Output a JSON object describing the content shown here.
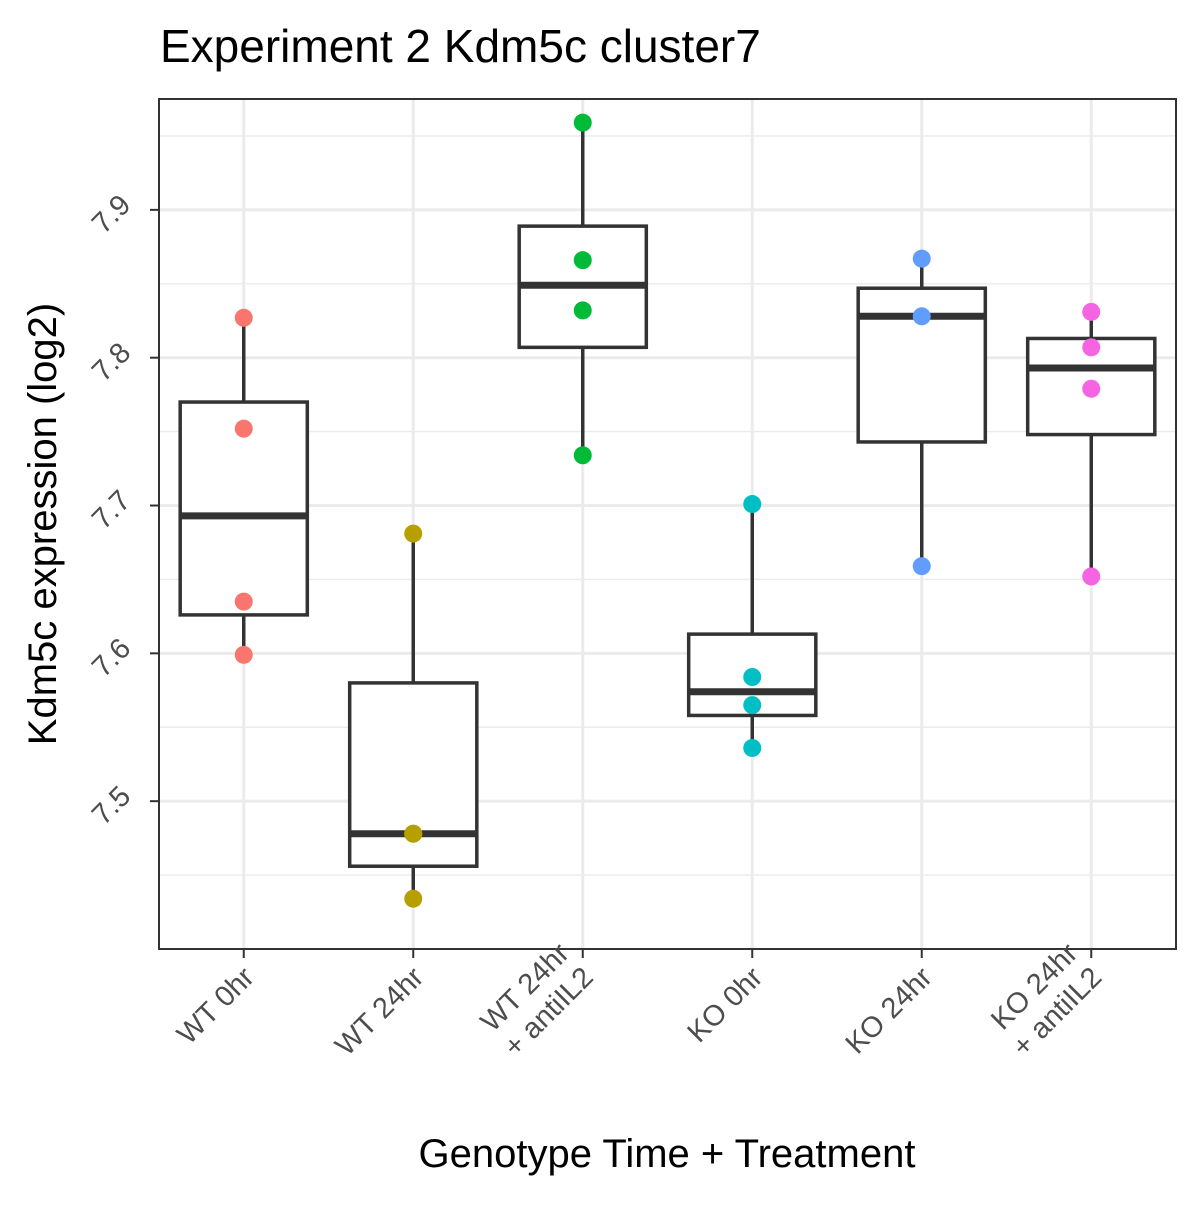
{
  "chart_data": {
    "type": "box",
    "title": "Experiment 2 Kdm5c cluster7",
    "xlabel": "Genotype Time + Treatment",
    "ylabel": "Kdm5c expression (log2)",
    "ylim": [
      7.4,
      7.975
    ],
    "yticks": [
      7.5,
      7.6,
      7.7,
      7.8,
      7.9
    ],
    "ytick_labels": [
      "7.5",
      "7.6",
      "7.7",
      "7.8",
      "7.9"
    ],
    "grid": true,
    "legend": "none",
    "categories": [
      [
        "WT 0hr"
      ],
      [
        "WT 24hr"
      ],
      [
        "WT 24hr",
        "+ antiIL2"
      ],
      [
        "KO 0hr"
      ],
      [
        "KO 24hr"
      ],
      [
        "KO 24hr",
        "+ antiIL2"
      ]
    ],
    "groups": [
      {
        "color": "#F8766D",
        "box": {
          "lower_whisker": 7.599,
          "q1": 7.626,
          "median": 7.693,
          "q3": 7.77,
          "upper_whisker": 7.827
        },
        "points": [
          7.827,
          7.752,
          7.635,
          7.599
        ]
      },
      {
        "color": "#B79F00",
        "box": {
          "lower_whisker": 7.434,
          "q1": 7.456,
          "median": 7.478,
          "q3": 7.58,
          "upper_whisker": 7.681
        },
        "points": [
          7.681,
          7.478,
          7.478,
          7.434
        ]
      },
      {
        "color": "#00BA38",
        "box": {
          "lower_whisker": 7.734,
          "q1": 7.807,
          "median": 7.849,
          "q3": 7.889,
          "upper_whisker": 7.959
        },
        "points": [
          7.959,
          7.866,
          7.832,
          7.734
        ]
      },
      {
        "color": "#00BFC4",
        "box": {
          "lower_whisker": 7.536,
          "q1": 7.558,
          "median": 7.574,
          "q3": 7.613,
          "upper_whisker": 7.701
        },
        "points": [
          7.701,
          7.584,
          7.565,
          7.536
        ]
      },
      {
        "color": "#619CFF",
        "box": {
          "lower_whisker": 7.659,
          "q1": 7.743,
          "median": 7.828,
          "q3": 7.847,
          "upper_whisker": 7.867
        },
        "points": [
          7.867,
          7.828,
          7.659
        ]
      },
      {
        "color": "#F564E3",
        "box": {
          "lower_whisker": 7.652,
          "q1": 7.748,
          "median": 7.793,
          "q3": 7.813,
          "upper_whisker": 7.831
        },
        "points": [
          7.831,
          7.807,
          7.779,
          7.652
        ]
      }
    ]
  }
}
